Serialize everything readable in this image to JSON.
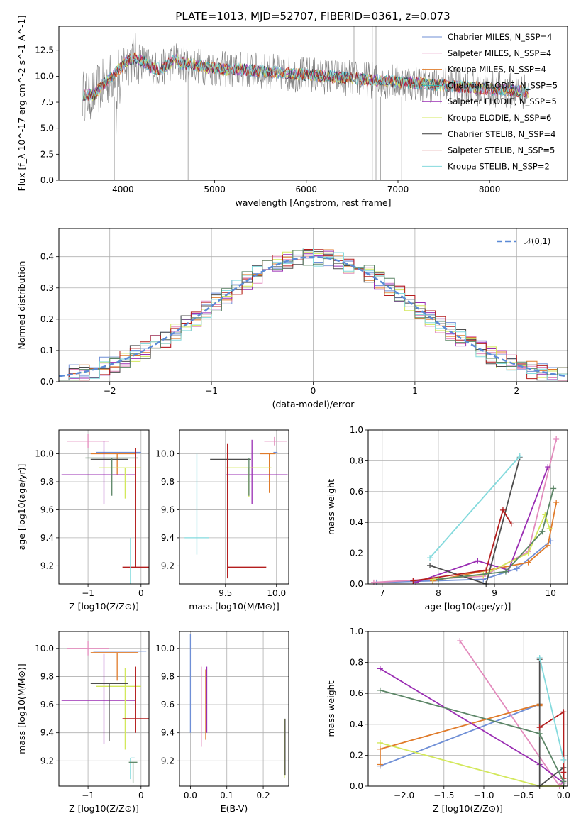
{
  "series_colors": [
    "#6f8fd6",
    "#e38bbd",
    "#e07b2a",
    "#9a2db3",
    "#d3e85b",
    "#4d4d4d",
    "#b41e1e",
    "#84dadd",
    "#5b8566"
  ],
  "chart_data": [
    {
      "type": "line",
      "title": "PLATE=1013, MJD=52707, FIBERID=0361, z=0.073",
      "xlabel": "wavelength [Angstrom, rest frame]",
      "ylabel": "Flux [f_λ 10^-17 erg cm^-2 s^-1 A^-1]",
      "xlim": [
        3300,
        8850
      ],
      "ylim": [
        0,
        14.8
      ],
      "xticks": [
        4000,
        5000,
        6000,
        7000,
        8000
      ],
      "yticks": [
        0.0,
        2.5,
        5.0,
        7.5,
        10.0,
        12.5
      ],
      "grid": false,
      "legend_position": "upper-right",
      "data_color": "#808080",
      "models": [
        "Chabrier MILES, N_SSP=4",
        "Salpeter MILES, N_SSP=4",
        "Kroupa MILES, N_SSP=4",
        "Chabrier ELODIE, N_SSP=5",
        "Salpeter ELODIE, N_SSP=5",
        "Kroupa ELODIE, N_SSP=6",
        "Chabrier STELIB, N_SSP=4",
        "Salpeter STELIB, N_SSP=5",
        "Kroupa STELIB, N_SSP=2"
      ],
      "model_colors": [
        "#6f8fd6",
        "#e38bbd",
        "#e07b2a",
        "#2bb3b3",
        "#9a2db3",
        "#d3e85b",
        "#3a3a3a",
        "#b41e1e",
        "#84dadd"
      ]
    },
    {
      "type": "line",
      "xlabel": "(data-model)/error",
      "ylabel": "Normed distribution",
      "xlim": [
        -2.5,
        2.5
      ],
      "ylim": [
        0,
        0.49
      ],
      "xticks": [
        -2,
        -1,
        0,
        1,
        2
      ],
      "yticks": [
        0.0,
        0.1,
        0.2,
        0.3,
        0.4
      ],
      "grid": true,
      "legend_position": "upper-right",
      "gaussian_label": "𝒩(0,1)",
      "gaussian_color": "#5b8ad6",
      "hist_colors": [
        "#6f8fd6",
        "#e38bbd",
        "#e07b2a",
        "#9a2db3",
        "#d3e85b",
        "#4d4d4d",
        "#b41e1e",
        "#84dadd",
        "#5b8566"
      ]
    },
    {
      "type": "scatter",
      "xlabel": "Z [log10(Z/Z⊙)]",
      "ylabel": "age  [log10(age/yr)]",
      "xlim": [
        -1.55,
        0.15
      ],
      "ylim": [
        9.07,
        10.17
      ],
      "xticks": [
        -1,
        0
      ],
      "yticks": [
        9.2,
        9.4,
        9.6,
        9.8,
        10.0
      ],
      "grid": true,
      "errorbars": [
        {
          "x": -0.3,
          "xerr": [
            0.55,
            0.3
          ],
          "y": 10.01,
          "yerr": [
            0.0,
            0.0
          ]
        },
        {
          "x": -1.0,
          "xerr": [
            0.4,
            0.4
          ],
          "y": 10.09,
          "yerr": [
            0.05,
            0.05
          ]
        },
        {
          "x": -0.45,
          "xerr": [
            0.5,
            0.35
          ],
          "y": 10.0,
          "yerr": [
            0.15,
            0.0
          ]
        },
        {
          "x": -0.7,
          "xerr": [
            0.8,
            0.6
          ],
          "y": 9.85,
          "yerr": [
            0.21,
            0.24
          ]
        },
        {
          "x": -0.3,
          "xerr": [
            0.5,
            0.3
          ],
          "y": 9.9,
          "yerr": [
            0.22,
            0.0
          ]
        },
        {
          "x": -0.6,
          "xerr": [
            0.35,
            0.35
          ],
          "y": 9.96,
          "yerr": [
            0.0,
            0.0
          ]
        },
        {
          "x": -0.1,
          "xerr": [
            0.25,
            0.25
          ],
          "y": 9.19,
          "yerr": [
            0.0,
            0.85
          ]
        },
        {
          "x": -0.2,
          "xerr": [
            0.0,
            0.0
          ],
          "y": 9.4,
          "yerr": [
            0.35,
            0.0
          ]
        },
        {
          "x": -0.55,
          "xerr": [
            0.5,
            0.5
          ],
          "y": 9.97,
          "yerr": [
            0.27,
            0.0
          ]
        }
      ]
    },
    {
      "type": "scatter",
      "xlabel": "mass [log10(M/M⊙)]",
      "ylabel": "",
      "xlim": [
        9.05,
        10.12
      ],
      "ylim": [
        9.07,
        10.17
      ],
      "xticks": [
        9.5,
        10.0
      ],
      "yticks": [
        9.2,
        9.4,
        9.6,
        9.8,
        10.0
      ],
      "grid": true,
      "errorbars": [
        {
          "x": 9.97,
          "xerr": [
            0.0,
            0.04
          ],
          "y": 10.01,
          "yerr": [
            0.0,
            0.0
          ]
        },
        {
          "x": 9.98,
          "xerr": [
            0.1,
            0.12
          ],
          "y": 10.09,
          "yerr": [
            0.03,
            0.03
          ]
        },
        {
          "x": 9.93,
          "xerr": [
            0.09,
            0.06
          ],
          "y": 10.0,
          "yerr": [
            0.28,
            0.0
          ]
        },
        {
          "x": 9.76,
          "xerr": [
            0.25,
            0.35
          ],
          "y": 9.85,
          "yerr": [
            0.21,
            0.25
          ]
        },
        {
          "x": 9.73,
          "xerr": [
            0.22,
            0.22
          ],
          "y": 9.9,
          "yerr": [
            0.21,
            0.0
          ]
        },
        {
          "x": 9.55,
          "xerr": [
            0.2,
            0.2
          ],
          "y": 9.96,
          "yerr": [
            0.0,
            0.0
          ]
        },
        {
          "x": 9.52,
          "xerr": [
            0.0,
            0.38
          ],
          "y": 9.19,
          "yerr": [
            0.08,
            0.88
          ]
        },
        {
          "x": 9.22,
          "xerr": [
            0.12,
            0.12
          ],
          "y": 9.4,
          "yerr": [
            0.12,
            0.6
          ]
        },
        {
          "x": 9.73,
          "xerr": [
            0.0,
            0.0
          ],
          "y": 9.97,
          "yerr": [
            0.27,
            0.0
          ]
        }
      ]
    },
    {
      "type": "scatter",
      "xlabel": "age  [log10(age/yr)]",
      "ylabel": "mass weight",
      "xlim": [
        6.75,
        10.3
      ],
      "ylim": [
        0,
        1.0
      ],
      "xticks": [
        7,
        8,
        9,
        10
      ],
      "yticks": [
        0.0,
        0.2,
        0.4,
        0.6,
        0.8,
        1.0
      ],
      "grid": true,
      "series": [
        {
          "x": [
            6.9,
            8.8,
            9.4,
            10.0
          ],
          "y": [
            0.01,
            0.03,
            0.1,
            0.28
          ]
        },
        {
          "x": [
            6.85,
            8.8,
            9.6,
            10.1
          ],
          "y": [
            0.01,
            0.05,
            0.21,
            0.94
          ]
        },
        {
          "x": [
            7.9,
            9.6,
            9.95,
            10.1
          ],
          "y": [
            0.02,
            0.14,
            0.25,
            0.53
          ]
        },
        {
          "x": [
            7.6,
            8.7,
            9.25,
            9.95
          ],
          "y": [
            0.01,
            0.15,
            0.09,
            0.76
          ]
        },
        {
          "x": [
            7.9,
            8.8,
            9.6,
            9.9,
            9.98
          ],
          "y": [
            0.03,
            0.06,
            0.2,
            0.45,
            0.36
          ]
        },
        {
          "x": [
            7.85,
            8.85,
            9.45
          ],
          "y": [
            0.12,
            0.0,
            0.82
          ]
        },
        {
          "x": [
            7.55,
            8.85,
            9.15,
            9.3
          ],
          "y": [
            0.02,
            0.09,
            0.48,
            0.39
          ]
        },
        {
          "x": [
            7.85,
            9.45
          ],
          "y": [
            0.17,
            0.83
          ]
        },
        {
          "x": [
            8.0,
            9.2,
            9.85,
            10.05
          ],
          "y": [
            0.03,
            0.08,
            0.34,
            0.62
          ]
        }
      ]
    },
    {
      "type": "scatter",
      "xlabel": "Z [log10(Z/Z⊙)]",
      "ylabel": "mass [log10(M/M⊙)]",
      "xlim": [
        -1.55,
        0.15
      ],
      "ylim": [
        9.02,
        10.12
      ],
      "xticks": [
        -1,
        0
      ],
      "yticks": [
        9.2,
        9.4,
        9.6,
        9.8,
        10.0
      ],
      "grid": true,
      "errorbars": [
        {
          "x": -0.4,
          "xerr": [
            0.5,
            0.5
          ],
          "y": 9.98,
          "yerr": [
            0.0,
            0.0
          ]
        },
        {
          "x": -1.0,
          "xerr": [
            0.4,
            0.4
          ],
          "y": 10.0,
          "yerr": [
            0.05,
            0.05
          ]
        },
        {
          "x": -0.45,
          "xerr": [
            0.5,
            0.4
          ],
          "y": 9.97,
          "yerr": [
            0.2,
            0.0
          ]
        },
        {
          "x": -0.7,
          "xerr": [
            0.8,
            0.6
          ],
          "y": 9.63,
          "yerr": [
            0.31,
            0.33
          ]
        },
        {
          "x": -0.3,
          "xerr": [
            0.55,
            0.3
          ],
          "y": 9.73,
          "yerr": [
            0.45,
            0.13
          ]
        },
        {
          "x": -0.6,
          "xerr": [
            0.35,
            0.35
          ],
          "y": 9.75,
          "yerr": [
            0.41,
            0.0
          ]
        },
        {
          "x": -0.1,
          "xerr": [
            0.25,
            0.25
          ],
          "y": 9.5,
          "yerr": [
            0.1,
            0.37
          ]
        },
        {
          "x": -0.2,
          "xerr": [
            0.0,
            0.08
          ],
          "y": 9.22,
          "yerr": [
            0.15,
            0.0
          ]
        },
        {
          "x": -0.15,
          "xerr": [
            0.08,
            0.08
          ],
          "y": 9.19,
          "yerr": [
            0.15,
            0.0
          ]
        }
      ]
    },
    {
      "type": "scatter",
      "xlabel": "E(B-V)",
      "ylabel": "",
      "xlim": [
        -0.03,
        0.27
      ],
      "ylim": [
        9.02,
        10.12
      ],
      "xticks": [
        0.0,
        0.1,
        0.2
      ],
      "yticks": [
        9.2,
        9.4,
        9.6,
        9.8,
        10.0
      ],
      "grid": true,
      "errorbars": [
        {
          "x": 0.0,
          "xerr": [
            0.0,
            0.0
          ],
          "y": 9.8,
          "yerr": [
            0.4,
            0.3
          ]
        },
        {
          "x": 0.03,
          "xerr": [
            0.0,
            0.0
          ],
          "y": 9.6,
          "yerr": [
            0.3,
            0.27
          ]
        },
        {
          "x": 0.042,
          "xerr": [
            0.0,
            0.0
          ],
          "y": 9.55,
          "yerr": [
            0.2,
            0.3
          ]
        },
        {
          "x": 0.045,
          "xerr": [
            0.0,
            0.0
          ],
          "y": 9.6,
          "yerr": [
            0.2,
            0.27
          ]
        },
        {
          "x": 0.258,
          "xerr": [
            0.0,
            0.0
          ],
          "y": 9.28,
          "yerr": [
            0.2,
            0.22
          ]
        },
        {
          "x": 0.26,
          "xerr": [
            0.0,
            0.0
          ],
          "y": 9.3,
          "yerr": [
            0.2,
            0.2
          ]
        }
      ]
    },
    {
      "type": "scatter",
      "xlabel": "Z [log10(Z/Z⊙)]",
      "ylabel": "mass weight",
      "xlim": [
        -2.45,
        0.05
      ],
      "ylim": [
        0,
        1.0
      ],
      "xticks": [
        -2.0,
        -1.5,
        -1.0,
        -0.5,
        0.0
      ],
      "yticks": [
        0.0,
        0.2,
        0.4,
        0.6,
        0.8,
        1.0
      ],
      "grid": true,
      "series": [
        {
          "x": [
            -2.3,
            -0.3
          ],
          "y": [
            0.13,
            0.53
          ]
        },
        {
          "x": [
            -1.3,
            -0.05,
            0.0
          ],
          "y": [
            0.94,
            0.0,
            0.03
          ]
        },
        {
          "x": [
            -2.3,
            -2.3,
            -0.3,
            -0.3
          ],
          "y": [
            0.14,
            0.24,
            0.53,
            0.52
          ]
        },
        {
          "x": [
            -2.3,
            -0.3,
            0.0
          ],
          "y": [
            0.76,
            0.14,
            0.02
          ]
        },
        {
          "x": [
            -2.3,
            -0.3,
            0.0
          ],
          "y": [
            0.28,
            0.0,
            0.0
          ]
        },
        {
          "x": [
            -0.3,
            -0.3,
            0.0,
            0.0
          ],
          "y": [
            0.82,
            0.0,
            0.12,
            0.0
          ]
        },
        {
          "x": [
            -0.3,
            0.0,
            0.0,
            0.0
          ],
          "y": [
            0.38,
            0.48,
            0.09,
            0.05
          ]
        },
        {
          "x": [
            -0.3,
            0.0
          ],
          "y": [
            0.83,
            0.17
          ]
        },
        {
          "x": [
            -2.3,
            -0.3,
            0.0
          ],
          "y": [
            0.62,
            0.34,
            0.03
          ]
        }
      ]
    }
  ]
}
